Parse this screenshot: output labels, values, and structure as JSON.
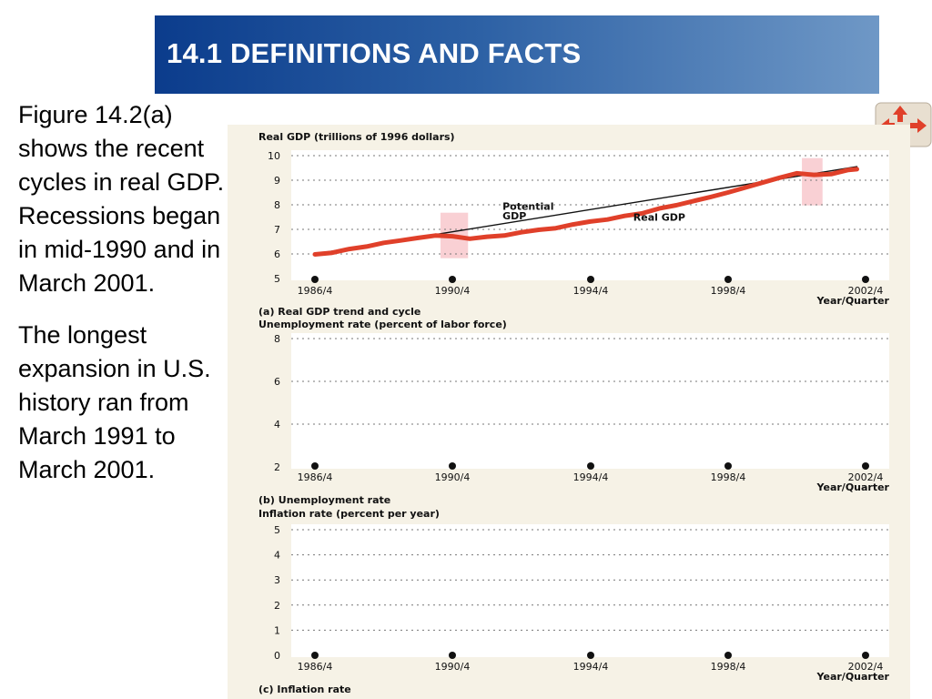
{
  "header": {
    "title": "14.1 DEFINITIONS AND FACTS"
  },
  "body": {
    "paragraph1": "Figure 14.2(a) shows the recent cycles in real GDP. Recessions began in mid-1990 and in March 2001.",
    "paragraph2": "The longest expansion in U.S. history ran from March 1991 to March 2001."
  },
  "nav": {
    "icon": "navigation-arrows-icon"
  },
  "colors": {
    "real_gdp": "#e0402a",
    "potential_gdp": "#111111",
    "recession_shade": "#f8c8cc",
    "plot_bg": "#ffffff",
    "panel_bg": "#f6f2e6"
  },
  "chart_data": [
    {
      "type": "line",
      "title": "Real GDP (trillions of 1996 dollars)",
      "caption": "(a) Real GDP trend and cycle",
      "xlabel": "Year/Quarter",
      "ylabel": "Real GDP (trillions of 1996 dollars)",
      "x_ticks": [
        "1986/4",
        "1990/4",
        "1994/4",
        "1998/4",
        "2002/4"
      ],
      "ylim": [
        5,
        10
      ],
      "y_ticks": [
        "5",
        "6",
        "7",
        "8",
        "9",
        "10"
      ],
      "grid": true,
      "recession_shading": [
        {
          "start": 1990.4,
          "end": 1991.2
        },
        {
          "start": 2000.9,
          "end": 2001.5
        }
      ],
      "annotations": [
        {
          "text": "Potential",
          "x": 1992.2,
          "y": 7.8
        },
        {
          "text": "GDP",
          "x": 1992.2,
          "y": 7.4
        },
        {
          "text": "Real GDP",
          "x": 1996.0,
          "y": 7.35
        }
      ],
      "series": [
        {
          "name": "Potential GDP",
          "color": "#111111",
          "x": [
            1986.75,
            2002.5
          ],
          "y": [
            6.0,
            9.55
          ]
        },
        {
          "name": "Real GDP",
          "color": "#e0402a",
          "x": [
            1986.75,
            1987.25,
            1987.75,
            1988.25,
            1988.75,
            1989.25,
            1989.75,
            1990.25,
            1990.75,
            1991.25,
            1991.75,
            1992.25,
            1992.75,
            1993.25,
            1993.75,
            1994.25,
            1994.75,
            1995.25,
            1995.75,
            1996.25,
            1996.75,
            1997.25,
            1997.75,
            1998.25,
            1998.75,
            1999.25,
            1999.75,
            2000.25,
            2000.75,
            2001.25,
            2001.75,
            2002.25,
            2002.5
          ],
          "y": [
            5.98,
            6.05,
            6.2,
            6.3,
            6.45,
            6.55,
            6.65,
            6.75,
            6.72,
            6.62,
            6.7,
            6.75,
            6.88,
            6.98,
            7.05,
            7.2,
            7.32,
            7.4,
            7.55,
            7.65,
            7.85,
            7.98,
            8.15,
            8.32,
            8.5,
            8.7,
            8.9,
            9.1,
            9.28,
            9.22,
            9.25,
            9.42,
            9.45
          ]
        }
      ]
    },
    {
      "type": "line",
      "title": "Unemployment rate (percent of labor force)",
      "caption": "(b) Unemployment rate",
      "xlabel": "Year/Quarter",
      "x_ticks": [
        "1986/4",
        "1990/4",
        "1994/4",
        "1998/4",
        "2002/4"
      ],
      "ylim": [
        2,
        8
      ],
      "y_ticks": [
        "2",
        "4",
        "6",
        "8"
      ],
      "grid": true,
      "series": []
    },
    {
      "type": "line",
      "title": "Inflation rate (percent per year)",
      "caption": "(c) Inflation rate",
      "xlabel": "Year/Quarter",
      "x_ticks": [
        "1986/4",
        "1990/4",
        "1994/4",
        "1998/4",
        "2002/4"
      ],
      "ylim": [
        0,
        5
      ],
      "y_ticks": [
        "0",
        "1",
        "2",
        "3",
        "4",
        "5"
      ],
      "grid": true,
      "series": []
    }
  ]
}
